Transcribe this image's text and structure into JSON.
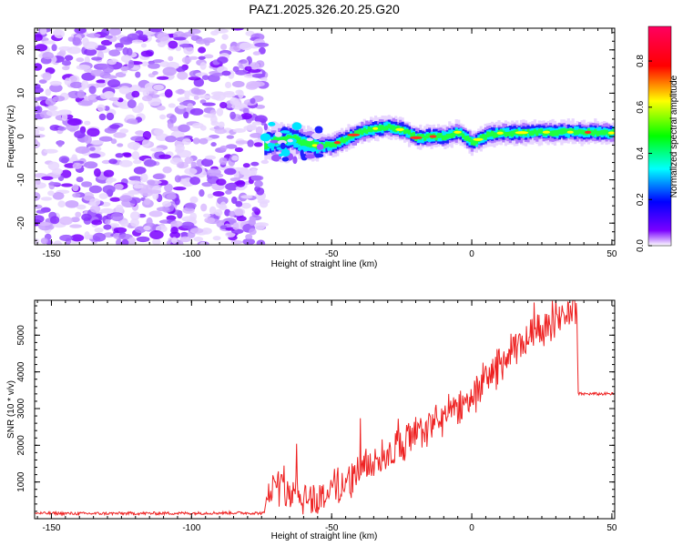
{
  "title": "PAZ1.2025.326.20.25.G20",
  "chart_data": [
    {
      "type": "heatmap",
      "title": "PAZ1.2025.326.20.25.G20",
      "xlabel": "Height of straight line (km)",
      "ylabel": "Frequency (Hz)",
      "xlim": [
        -156,
        51
      ],
      "ylim": [
        -25,
        25
      ],
      "xticks": [
        -150,
        -100,
        -50,
        0,
        50
      ],
      "yticks": [
        -20,
        -10,
        0,
        10,
        20
      ],
      "noise_region_x": [
        -156,
        -74
      ],
      "ridge": {
        "description": "dominant frequency ridge from about -70 km to 51 km",
        "x": [
          -74,
          -70,
          -65,
          -60,
          -55,
          -50,
          -45,
          -40,
          -35,
          -30,
          -25,
          -20,
          -15,
          -10,
          -5,
          0,
          5,
          10,
          15,
          20,
          30,
          40,
          51
        ],
        "frequency": [
          -2,
          -1,
          -0.5,
          -1.5,
          -2.2,
          -2,
          -0.5,
          1,
          1.8,
          2.2,
          1.5,
          -0.3,
          0,
          0,
          1,
          -1.5,
          0.3,
          0.8,
          0.8,
          1,
          1,
          1,
          0.8
        ]
      },
      "colorbar": {
        "label": "Normalized spectral amplitude",
        "range": [
          0.0,
          0.95
        ],
        "ticks": [
          0.0,
          0.2,
          0.4,
          0.6,
          0.8
        ],
        "tick_labels": [
          "0.0",
          "0.2",
          "0.4",
          "0.6",
          "0.8"
        ],
        "colormap": [
          "#ffffff",
          "#7a00ff",
          "#0000ff",
          "#00ffff",
          "#00ff00",
          "#ffff00",
          "#ff0000",
          "#ff0060"
        ]
      },
      "tick_labels_x": [
        "-150",
        "-100",
        "-50",
        "0",
        "50"
      ],
      "tick_labels_y": [
        "-20",
        "-10",
        "0",
        "10",
        "20"
      ]
    },
    {
      "type": "line",
      "xlabel": "Height of straight line (km)",
      "ylabel": "SNR (10 * v/v)",
      "xlim": [
        -156,
        51
      ],
      "ylim": [
        0,
        5950
      ],
      "xticks": [
        -150,
        -100,
        -50,
        0,
        50
      ],
      "yticks": [
        1000,
        2000,
        3000,
        4000,
        5000
      ],
      "tick_labels_x": [
        "-150",
        "-100",
        "-50",
        "0",
        "50"
      ],
      "tick_labels_y": [
        "1000",
        "2000",
        "3000",
        "4000",
        "5000"
      ],
      "series": [
        {
          "name": "SNR",
          "color": "#ee2222",
          "x": [
            -156,
            -140,
            -120,
            -100,
            -85,
            -74,
            -73,
            -70,
            -65,
            -60,
            -55,
            -50,
            -45,
            -40,
            -35,
            -30,
            -25,
            -20,
            -15,
            -10,
            -5,
            0,
            5,
            10,
            15,
            20,
            25,
            30,
            35,
            37.5,
            38,
            45,
            51
          ],
          "y": [
            150,
            140,
            145,
            150,
            160,
            150,
            700,
            900,
            800,
            650,
            500,
            800,
            1000,
            1300,
            1550,
            1800,
            2000,
            2250,
            2500,
            2750,
            3000,
            3350,
            3800,
            4200,
            4550,
            4900,
            5200,
            5450,
            5650,
            5700,
            3400,
            3400,
            3400
          ]
        }
      ]
    }
  ]
}
